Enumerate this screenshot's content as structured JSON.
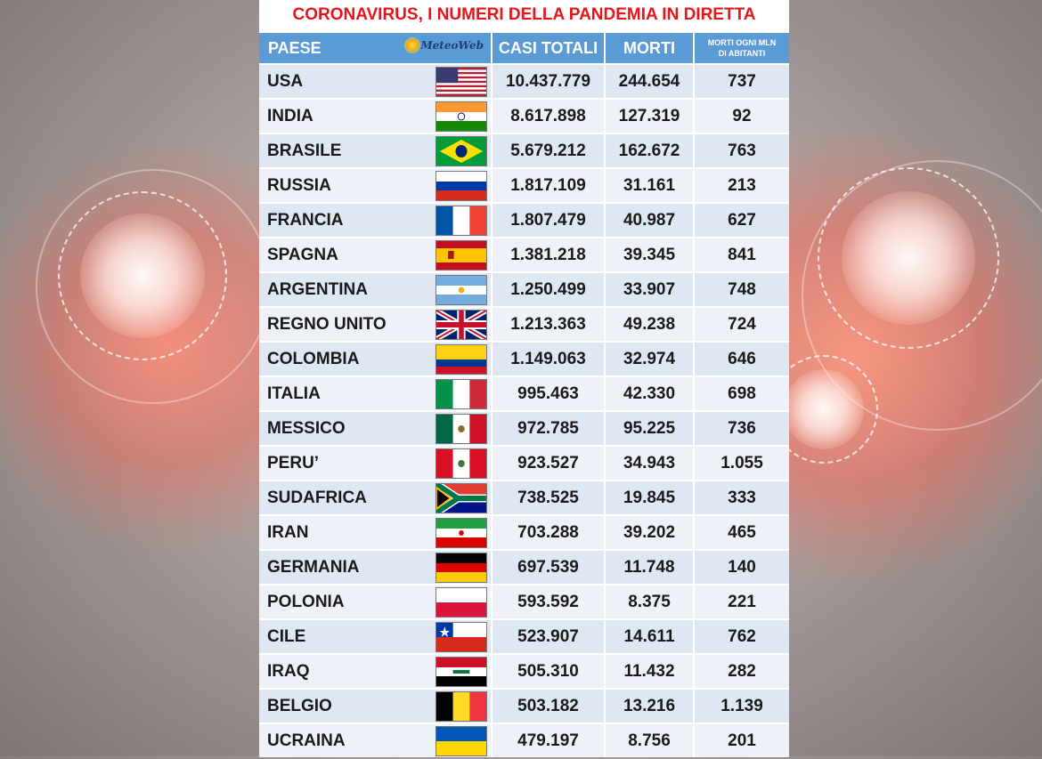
{
  "title": "CORONAVIRUS, I NUMERI DELLA PANDEMIA IN DIRETTA",
  "logo_text": "MeteoWeb",
  "headers": {
    "paese": "PAESE",
    "casi": "CASI TOTALI",
    "morti": "MORTI",
    "mln_line1": "MORTI OGNI MLN",
    "mln_line2": "DI ABITANTI"
  },
  "colors": {
    "title": "#e8141a",
    "header_bg": "#5b9bd5",
    "row_a": "#dfe7f3",
    "row_b": "#eef2f8"
  },
  "rows": [
    {
      "paese": "USA",
      "casi": "10.437.779",
      "morti": "244.654",
      "mln": "737",
      "flag": "usa-flag-icon"
    },
    {
      "paese": "INDIA",
      "casi": "8.617.898",
      "morti": "127.319",
      "mln": "92",
      "flag": "india-flag-icon"
    },
    {
      "paese": "BRASILE",
      "casi": "5.679.212",
      "morti": "162.672",
      "mln": "763",
      "flag": "brazil-flag-icon"
    },
    {
      "paese": "RUSSIA",
      "casi": "1.817.109",
      "morti": "31.161",
      "mln": "213",
      "flag": "russia-flag-icon"
    },
    {
      "paese": "FRANCIA",
      "casi": "1.807.479",
      "morti": "40.987",
      "mln": "627",
      "flag": "france-flag-icon"
    },
    {
      "paese": "SPAGNA",
      "casi": "1.381.218",
      "morti": "39.345",
      "mln": "841",
      "flag": "spain-flag-icon"
    },
    {
      "paese": "ARGENTINA",
      "casi": "1.250.499",
      "morti": "33.907",
      "mln": "748",
      "flag": "argentina-flag-icon"
    },
    {
      "paese": "REGNO UNITO",
      "casi": "1.213.363",
      "morti": "49.238",
      "mln": "724",
      "flag": "uk-flag-icon"
    },
    {
      "paese": "COLOMBIA",
      "casi": "1.149.063",
      "morti": "32.974",
      "mln": "646",
      "flag": "colombia-flag-icon"
    },
    {
      "paese": "ITALIA",
      "casi": "995.463",
      "morti": "42.330",
      "mln": "698",
      "flag": "italy-flag-icon"
    },
    {
      "paese": "MESSICO",
      "casi": "972.785",
      "morti": "95.225",
      "mln": "736",
      "flag": "mexico-flag-icon"
    },
    {
      "paese": "PERU’",
      "casi": "923.527",
      "morti": "34.943",
      "mln": "1.055",
      "flag": "peru-flag-icon"
    },
    {
      "paese": "SUDAFRICA",
      "casi": "738.525",
      "morti": "19.845",
      "mln": "333",
      "flag": "south-africa-flag-icon"
    },
    {
      "paese": "IRAN",
      "casi": "703.288",
      "morti": "39.202",
      "mln": "465",
      "flag": "iran-flag-icon"
    },
    {
      "paese": "GERMANIA",
      "casi": "697.539",
      "morti": "11.748",
      "mln": "140",
      "flag": "germany-flag-icon"
    },
    {
      "paese": "POLONIA",
      "casi": "593.592",
      "morti": "8.375",
      "mln": "221",
      "flag": "poland-flag-icon"
    },
    {
      "paese": "CILE",
      "casi": "523.907",
      "morti": "14.611",
      "mln": "762",
      "flag": "chile-flag-icon"
    },
    {
      "paese": "IRAQ",
      "casi": "505.310",
      "morti": "11.432",
      "mln": "282",
      "flag": "iraq-flag-icon"
    },
    {
      "paese": "BELGIO",
      "casi": "503.182",
      "morti": "13.216",
      "mln": "1.139",
      "flag": "belgium-flag-icon"
    },
    {
      "paese": "UCRAINA",
      "casi": "479.197",
      "morti": "8.756",
      "mln": "201",
      "flag": "ukraine-flag-icon"
    }
  ]
}
